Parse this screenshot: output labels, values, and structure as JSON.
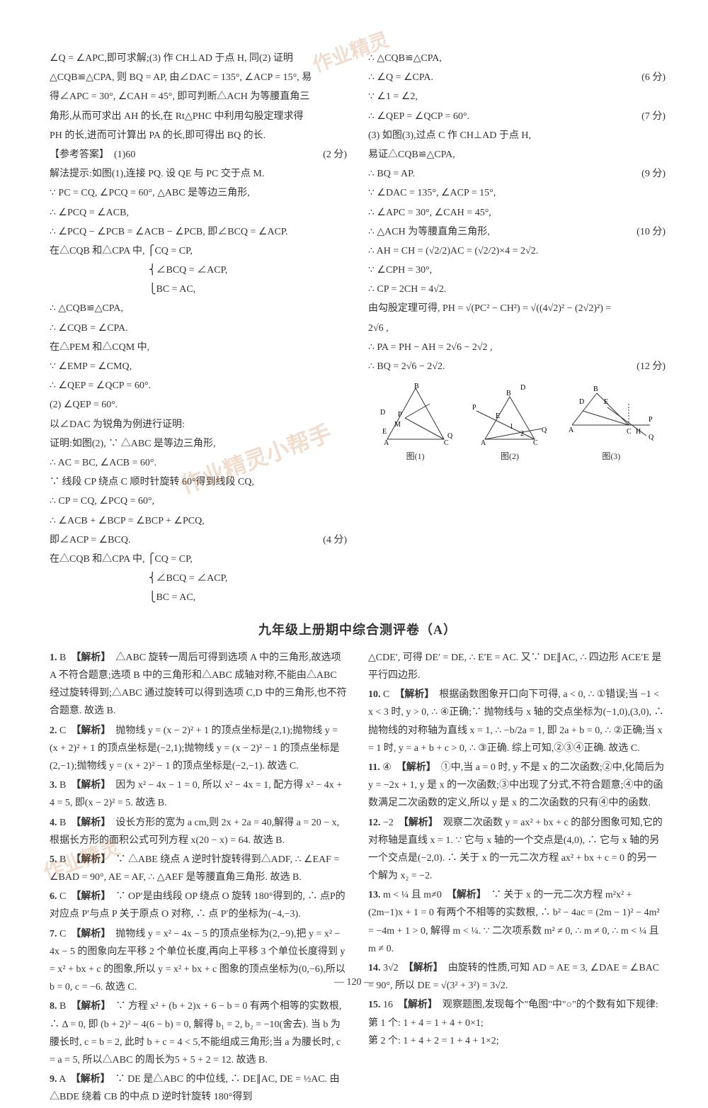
{
  "watermarks": {
    "w1": "作业精灵",
    "w2": "作业精灵小帮手",
    "w3": "作业精灵"
  },
  "top": {
    "left": [
      "∠Q = ∠APC,即可求解;(3) 作 CH⊥AD 于点 H, 同(2) 证明",
      "△CQB≌△CPA, 则 BQ = AP, 由∠DAC = 135°, ∠ACP = 15°, 易",
      "得∠APC = 30°, ∠CAH = 45°, 即可判断△ACH 为等腰直角三",
      "角形,从而可求出 AH 的长,在 Rt△PHC 中利用勾股定理求得",
      "PH 的长,进而可计算出 PA 的长,即可得出 BQ 的长.",
      "【参考答案】　(1)60",
      "解法提示:如图(1),连接 PQ. 设 QE 与 PC 交于点 M.",
      "∵ PC = CQ, ∠PCQ = 60°, △ABC 是等边三角形,",
      "∴ ∠PCQ = ∠ACB,",
      "∴ ∠PCQ − ∠PCB = ∠ACB − ∠PCB, 即∠BCQ = ∠ACP.",
      "在△CQB 和△CPA 中, ⎧CQ = CP,",
      "　　　　　　　　　　⎨∠BCQ = ∠ACP,",
      "　　　　　　　　　　⎩BC = AC,",
      "∴ △CQB≌△CPA,",
      "∴ ∠CQB = ∠CPA.",
      "在△PEM 和△CQM 中,",
      "∵ ∠EMP = ∠CMQ,",
      "∴ ∠QEP = ∠QCP = 60°.",
      "(2) ∠QEP = 60°.",
      "以∠DAC 为锐角为例进行证明:",
      "证明:如图(2), ∵ △ABC 是等边三角形,",
      "∴ AC = BC, ∠ACB = 60°.",
      "∵ 线段 CP 绕点 C 顺时针旋转 60°得到线段 CQ,",
      "∴ CP = CQ, ∠PCQ = 60°,",
      "∴ ∠ACB + ∠BCP = ∠BCP + ∠PCQ,",
      "即∠ACP = ∠BCQ.",
      "在△CQB 和△CPA 中, ⎧CQ = CP,",
      "　　　　　　　　　　⎨∠BCQ = ∠ACP,",
      "　　　　　　　　　　⎩BC = AC,"
    ],
    "left_scores": {
      "5": "(2 分)",
      "25": "(4 分)"
    },
    "right": [
      "∴ △CQB≌△CPA,",
      "∴ ∠Q = ∠CPA.",
      "∵ ∠1 = ∠2,",
      "∴ ∠QEP = ∠QCP = 60°.",
      "(3) 如图(3),过点 C 作 CH⊥AD 于点 H,",
      "易证△CQB≌△CPA,",
      "∴ BQ = AP.",
      "∵ ∠DAC = 135°, ∠ACP = 15°,",
      "∴ ∠APC = 30°, ∠CAH = 45°,",
      "∴ △ACH 为等腰直角三角形,",
      "∴ AH = CH = (√2/2)AC = (√2/2)×4 = 2√2.",
      "∵ ∠CPH = 30°,",
      "∴ CP = 2CH = 4√2.",
      "由勾股定理可得, PH = √(PC² − CH²) = √((4√2)² − (2√2)²) =",
      "2√6 ,",
      "∴ PA = PH − AH = 2√6 − 2√2 ,",
      "∴ BQ = 2√6 − 2√2."
    ],
    "right_scores": {
      "1": "(6 分)",
      "3": "(7 分)",
      "6": "(9 分)",
      "9": "(10 分)",
      "16": "(12 分)"
    },
    "fig_labels": [
      "图(1)",
      "图(2)",
      "图(3)"
    ]
  },
  "section_title": "九年级上册期中综合测评卷（A）",
  "bottom": {
    "left": [
      {
        "n": "1.",
        "ans": "B",
        "tag": "【解析】",
        "body": "△ABC 旋转一周后可得到选项 A 中的三角形,故选项 A 不符合题意;选项 B 中的三角形和△ABC 成轴对称,不能由△ABC 经过旋转得到;△ABC 通过旋转可以得到选项 C,D 中的三角形,也不符合题意. 故选 B."
      },
      {
        "n": "2.",
        "ans": "C",
        "tag": "【解析】",
        "body": "抛物线 y = (x − 2)² + 1 的顶点坐标是(2,1);抛物线 y = (x + 2)² + 1 的顶点坐标是(−2,1);抛物线 y = (x − 2)² − 1 的顶点坐标是(2,−1);抛物线 y = (x + 2)² − 1 的顶点坐标是(−2,−1). 故选 C."
      },
      {
        "n": "3.",
        "ans": "B",
        "tag": "【解析】",
        "body": "因为 x² − 4x − 1 = 0, 所以 x² − 4x = 1, 配方得 x² − 4x + 4 = 5, 即(x − 2)² = 5. 故选 B."
      },
      {
        "n": "4.",
        "ans": "B",
        "tag": "【解析】",
        "body": "设长方形的宽为 a cm,则 2x + 2a = 40,解得 a = 20 − x,根据长方形的面积公式可列方程 x(20 − x) = 64. 故选 B."
      },
      {
        "n": "5.",
        "ans": "B",
        "tag": "【解析】",
        "body": "∵ △ABE 绕点 A 逆时针旋转得到△ADF, ∴ ∠EAF = ∠BAD = 90°, AE = AF, ∴ △AEF 是等腰直角三角形. 故选 B."
      },
      {
        "n": "6.",
        "ans": "C",
        "tag": "【解析】",
        "body": "∵ OP′是由线段 OP 绕点 O 旋转 180°得到的, ∴ 点P的对应点 P′与点 P 关于原点 O 对称, ∴ 点 P′的坐标为(−4,−3)."
      },
      {
        "n": "7.",
        "ans": "C",
        "tag": "【解析】",
        "body": "抛物线 y = x² − 4x − 5 的顶点坐标为(2,−9),把 y = x² − 4x − 5 的图象向左平移 2 个单位长度,再向上平移 3 个单位长度得到 y = x² + bx + c 的图象,所以 y = x² + bx + c 图象的顶点坐标为(0,−6),所以 b = 0, c = −6. 故选 C."
      },
      {
        "n": "8.",
        "ans": "B",
        "tag": "【解析】",
        "body": "∵ 方程 x² + (b + 2)x + 6 − b = 0 有两个相等的实数根, ∴ Δ = 0, 即 (b + 2)² − 4(6 − b) = 0, 解得 b₁ = 2, b₂ = −10(舍去). 当 b 为腰长时, c = b = 2, 此时 b + c = 4 < 5,不能组成三角形;当 a 为腰长时, c = a = 5, 所以△ABC 的周长为5 + 5 + 2 = 12. 故选 B."
      },
      {
        "n": "9.",
        "ans": "A",
        "tag": "【解析】",
        "body": "∵ DE 是△ABC 的中位线, ∴ DE∥AC, DE = ½AC. 由△BDE 绕着 CB 的中点 D 逆时针旋转 180°得到"
      }
    ],
    "right": [
      {
        "n": "",
        "ans": "",
        "tag": "",
        "body": "△CDE′, 可得 DE′ = DE, ∴ E′E = AC. 又∵ DE∥AC, ∴ 四边形 ACE′E 是平行四边形."
      },
      {
        "n": "10.",
        "ans": "C",
        "tag": "【解析】",
        "body": "根据函数图象开口向下可得, a < 0, ∴ ①错误;当 −1 < x < 3 时, y > 0, ∴ ④正确;∵ 抛物线与 x 轴的交点坐标为(−1,0),(3,0), ∴ 抛物线的对称轴为直线 x = 1, ∴ −b/2a = 1, 即 2a + b = 0, ∴ ②正确;当 x = 1 时, y = a + b + c > 0, ∴ ③正确. 综上可知,②③④正确. 故选 C."
      },
      {
        "n": "11.",
        "ans": "④",
        "tag": "【解析】",
        "body": "①中,当 a = 0 时, y 不是 x 的二次函数;②中,化简后为 y = −2x + 1, y 是 x 的一次函数;③中出现了分式,不符合题意;④中的函数满足二次函数的定义,所以 y 是 x 的二次函数的只有④中的函数."
      },
      {
        "n": "12.",
        "ans": "−2",
        "tag": "【解析】",
        "body": "观察二次函数 y = ax² + bx + c 的部分图象可知,它的对称轴是直线 x = 1. ∵ 它与 x 轴的一个交点是(4,0), ∴ 它与 x 轴的另一个交点是(−2,0). ∴ 关于 x 的一元二次方程 ax² + bx + c = 0 的另一个解为 x₂ = −2."
      },
      {
        "n": "13.",
        "ans": "m < ¼ 且 m≠0",
        "tag": "【解析】",
        "body": "∵ 关于 x 的一元二次方程 m²x² + (2m−1)x + 1 = 0 有两个不相等的实数根, ∴ b² − 4ac = (2m − 1)² − 4m² = −4m + 1 > 0, 解得 m < ¼. ∵ 二次项系数 m² ≠ 0, ∴ m ≠ 0, ∴ m < ¼ 且 m ≠ 0."
      },
      {
        "n": "14.",
        "ans": "3√2",
        "tag": "【解析】",
        "body": "由旋转的性质,可知 AD = AE = 3, ∠DAE = ∠BAC = 90°, 所以 DE = √(3² + 3²) = 3√2."
      },
      {
        "n": "15.",
        "ans": "16",
        "tag": "【解析】",
        "body": "观察题图,发现每个\"龟图\"中\"○\"的个数有如下规律:\n第 1 个: 1 + 4 = 1 + 4 + 0×1;\n第 2 个: 1 + 4 + 2 = 1 + 4 + 1×2;"
      }
    ]
  },
  "page_number": "— 120 —"
}
